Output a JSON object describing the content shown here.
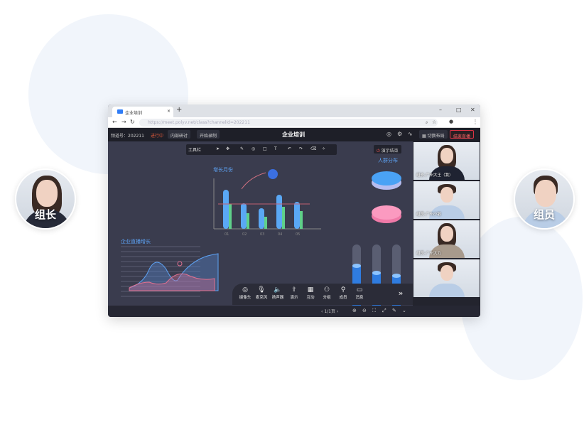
{
  "side_avatars": {
    "left_label": "组长",
    "right_label": "组员"
  },
  "browser": {
    "tab_title": "企业培训",
    "tab_close": "×",
    "new_tab": "+",
    "url": "https://meet.polyv.net/class?channelId=202211",
    "minimize": "–",
    "maximize": "□",
    "close": "✕"
  },
  "header": {
    "channel_label": "频道号：202211",
    "status": "进行中",
    "discussion_btn": "内部研讨",
    "record_btn": "开始录制",
    "title": "企业培训",
    "layout_btn": "切换布局",
    "end_btn": "结束直播"
  },
  "toolbar": {
    "label": "工具栏",
    "demo_btn": "演示结束"
  },
  "whiteboard": {
    "bar_title": "增长月份",
    "bar_categories": [
      "01",
      "02",
      "03",
      "04",
      "05"
    ],
    "pie_title": "人群分布",
    "line_title": "企业直播增长"
  },
  "videos": [
    {
      "name": "组长-广州大王（我）"
    },
    {
      "name": "组员-广州小敏"
    },
    {
      "name": "组员-广州大力"
    },
    {
      "name": ""
    }
  ],
  "controls": [
    {
      "label": "摄像头",
      "icon": "camera-icon"
    },
    {
      "label": "麦克风",
      "icon": "microphone-icon"
    },
    {
      "label": "扬声器",
      "icon": "speaker-icon"
    },
    {
      "label": "演示",
      "icon": "share-icon"
    },
    {
      "label": "互动",
      "icon": "interact-icon"
    },
    {
      "label": "分组",
      "icon": "group-icon"
    },
    {
      "label": "成员",
      "icon": "member-icon"
    },
    {
      "label": "消息",
      "icon": "message-icon"
    }
  ],
  "pager": {
    "page": "1/1页"
  }
}
